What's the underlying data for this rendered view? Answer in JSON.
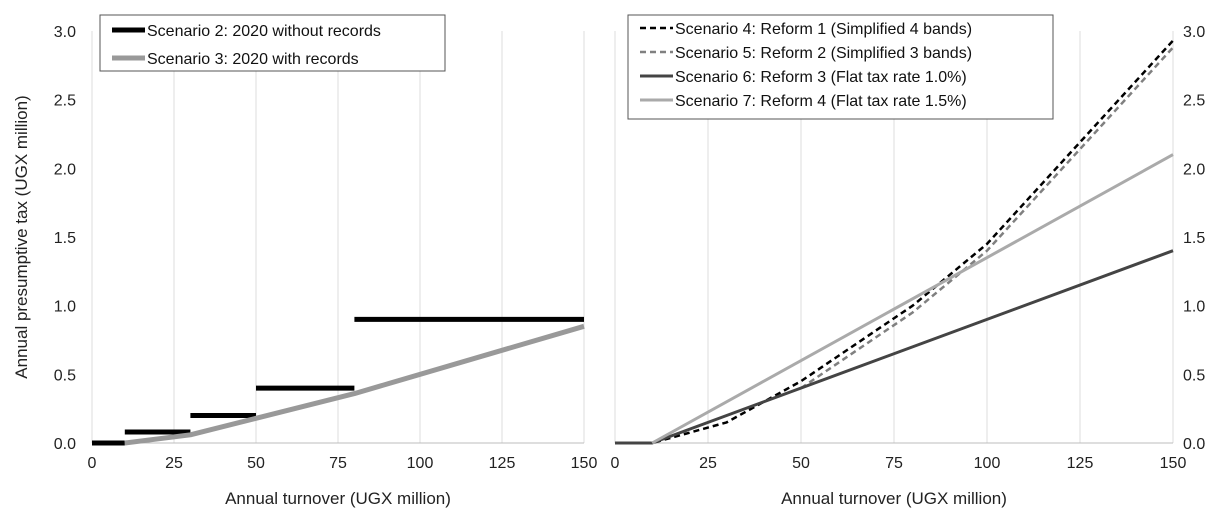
{
  "figure": {
    "ylabel": "Annual presumptive tax (UGX million)"
  },
  "chart_data": [
    {
      "type": "line",
      "title": "",
      "xlabel": "Annual turnover (UGX million)",
      "ylabel": "Annual presumptive tax (UGX million)",
      "xlim": [
        0,
        150
      ],
      "ylim": [
        0,
        3
      ],
      "xticks": [
        "0",
        "25",
        "50",
        "75",
        "100",
        "125",
        "150"
      ],
      "yticks": [
        "0.0",
        "0.5",
        "1.0",
        "1.5",
        "2.0",
        "2.5",
        "3.0"
      ],
      "grid": "vertical",
      "legend_position": "top-left",
      "series": [
        {
          "name": "Scenario 2: 2020 without records",
          "color": "#000000",
          "dash": "solid",
          "segments": [
            {
              "x": [
                0,
                10
              ],
              "y": [
                0,
                0
              ]
            },
            {
              "x": [
                10,
                30
              ],
              "y": [
                0.08,
                0.08
              ]
            },
            {
              "x": [
                30,
                50
              ],
              "y": [
                0.2,
                0.2
              ]
            },
            {
              "x": [
                50,
                80
              ],
              "y": [
                0.4,
                0.4
              ]
            },
            {
              "x": [
                80,
                150
              ],
              "y": [
                0.9,
                0.9
              ]
            }
          ]
        },
        {
          "name": "Scenario 3: 2020 with records",
          "color": "#999999",
          "dash": "solid",
          "segments": [
            {
              "x": [
                10,
                30,
                50,
                80,
                150
              ],
              "y": [
                0,
                0.06,
                0.18,
                0.36,
                0.85
              ]
            }
          ]
        }
      ]
    },
    {
      "type": "line",
      "title": "",
      "xlabel": "Annual turnover (UGX million)",
      "ylabel": "",
      "xlim": [
        0,
        150
      ],
      "ylim": [
        0,
        3
      ],
      "xticks": [
        "0",
        "25",
        "50",
        "75",
        "100",
        "125",
        "150"
      ],
      "yticks": [
        "0.0",
        "0.5",
        "1.0",
        "1.5",
        "2.0",
        "2.5",
        "3.0"
      ],
      "grid": "vertical",
      "legend_position": "top-left",
      "series": [
        {
          "name": "Scenario 4: Reform 1 (Simplified 4 bands)",
          "color": "#000000",
          "dash": "dashed",
          "segments": [
            {
              "x": [
                0,
                10,
                30,
                50,
                80,
                100,
                150
              ],
              "y": [
                0,
                0,
                0.15,
                0.45,
                1.0,
                1.45,
                2.93
              ]
            }
          ]
        },
        {
          "name": "Scenario 5: Reform 2 (Simplified 3 bands)",
          "color": "#808080",
          "dash": "dashed",
          "segments": [
            {
              "x": [
                50,
                80,
                100,
                150
              ],
              "y": [
                0.4,
                0.95,
                1.4,
                2.88
              ]
            }
          ]
        },
        {
          "name": "Scenario 6: Reform 3 (Flat tax rate 1.0%)",
          "color": "#444444",
          "dash": "solid",
          "segments": [
            {
              "x": [
                0,
                10,
                150
              ],
              "y": [
                0,
                0,
                1.4
              ]
            }
          ]
        },
        {
          "name": "Scenario 7: Reform 4 (Flat tax rate 1.5%)",
          "color": "#aaaaaa",
          "dash": "solid",
          "segments": [
            {
              "x": [
                10,
                150
              ],
              "y": [
                0,
                2.1
              ]
            }
          ]
        }
      ]
    }
  ]
}
